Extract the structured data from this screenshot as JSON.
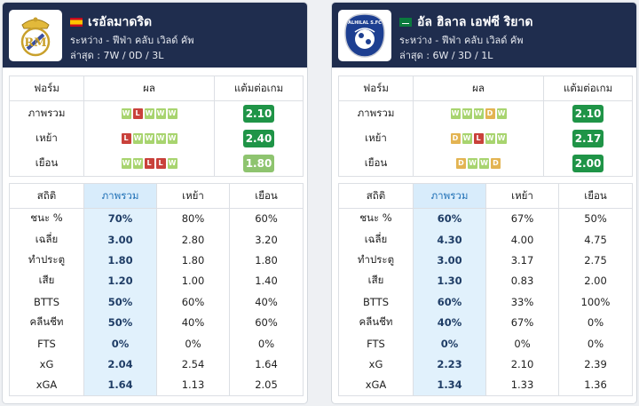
{
  "teams": [
    {
      "name": "เรอัลมาดริด",
      "flag": "spain",
      "logo": "real-madrid-crest",
      "meta_versus": "ระหว่าง - ฟีฟ่า คลับ เวิลด์ คัพ",
      "meta_last": "ล่าสุด : 7W / 0D / 3L",
      "form_headers": [
        "ฟอร์ม",
        "ผล",
        "แต้มต่อเกม"
      ],
      "form_rows": [
        {
          "label": "ภาพรวม",
          "results": [
            "W",
            "L",
            "W",
            "W",
            "W"
          ],
          "ppg": "2.10",
          "ppg_color": "#1f9447"
        },
        {
          "label": "เหย้า",
          "results": [
            "L",
            "W",
            "W",
            "W",
            "W"
          ],
          "ppg": "2.40",
          "ppg_color": "#1f9447"
        },
        {
          "label": "เยือน",
          "results": [
            "W",
            "W",
            "L",
            "L",
            "W"
          ],
          "ppg": "1.80",
          "ppg_color": "#8ec46f"
        }
      ],
      "stats_headers": [
        "สถิติ",
        "ภาพรวม",
        "เหย้า",
        "เยือน"
      ],
      "stats_rows": [
        {
          "label": "ชนะ %",
          "overall": "70%",
          "home": "80%",
          "away": "60%"
        },
        {
          "label": "เฉลี่ย",
          "overall": "3.00",
          "home": "2.80",
          "away": "3.20"
        },
        {
          "label": "ทำประตู",
          "overall": "1.80",
          "home": "1.80",
          "away": "1.80"
        },
        {
          "label": "เสีย",
          "overall": "1.20",
          "home": "1.00",
          "away": "1.40"
        },
        {
          "label": "BTTS",
          "overall": "50%",
          "home": "60%",
          "away": "40%"
        },
        {
          "label": "คลีนชีท",
          "overall": "50%",
          "home": "40%",
          "away": "60%"
        },
        {
          "label": "FTS",
          "overall": "0%",
          "home": "0%",
          "away": "0%"
        },
        {
          "label": "xG",
          "overall": "2.04",
          "home": "2.54",
          "away": "1.64"
        },
        {
          "label": "xGA",
          "overall": "1.64",
          "home": "1.13",
          "away": "2.05"
        }
      ]
    },
    {
      "name": "อัล ฮิลาล เอฟซี ริยาด",
      "flag": "saudi-arabia",
      "logo": "al-hilal-crest",
      "logo_text": "ALHILAL S.FC",
      "meta_versus": "ระหว่าง - ฟีฟ่า คลับ เวิลด์ คัพ",
      "meta_last": "ล่าสุด : 6W / 3D / 1L",
      "form_headers": [
        "ฟอร์ม",
        "ผล",
        "แต้มต่อเกม"
      ],
      "form_rows": [
        {
          "label": "ภาพรวม",
          "results": [
            "W",
            "W",
            "W",
            "D",
            "W"
          ],
          "ppg": "2.10",
          "ppg_color": "#1f9447"
        },
        {
          "label": "เหย้า",
          "results": [
            "D",
            "W",
            "L",
            "W",
            "W"
          ],
          "ppg": "2.17",
          "ppg_color": "#1f9447"
        },
        {
          "label": "เยือน",
          "results": [
            "D",
            "W",
            "W",
            "D"
          ],
          "ppg": "2.00",
          "ppg_color": "#1f9447"
        }
      ],
      "stats_headers": [
        "สถิติ",
        "ภาพรวม",
        "เหย้า",
        "เยือน"
      ],
      "stats_rows": [
        {
          "label": "ชนะ %",
          "overall": "60%",
          "home": "67%",
          "away": "50%"
        },
        {
          "label": "เฉลี่ย",
          "overall": "4.30",
          "home": "4.00",
          "away": "4.75"
        },
        {
          "label": "ทำประตู",
          "overall": "3.00",
          "home": "3.17",
          "away": "2.75"
        },
        {
          "label": "เสีย",
          "overall": "1.30",
          "home": "0.83",
          "away": "2.00"
        },
        {
          "label": "BTTS",
          "overall": "60%",
          "home": "33%",
          "away": "100%"
        },
        {
          "label": "คลีนชีท",
          "overall": "40%",
          "home": "67%",
          "away": "0%"
        },
        {
          "label": "FTS",
          "overall": "0%",
          "home": "0%",
          "away": "0%"
        },
        {
          "label": "xG",
          "overall": "2.23",
          "home": "2.10",
          "away": "2.39"
        },
        {
          "label": "xGA",
          "overall": "1.34",
          "home": "1.33",
          "away": "1.36"
        }
      ]
    }
  ],
  "colors": {
    "header_bg": "#1f2d4e",
    "win": "#a8d46f",
    "loss": "#c9413b",
    "draw": "#e3b452",
    "highlight_column": "#e1f1fc"
  }
}
